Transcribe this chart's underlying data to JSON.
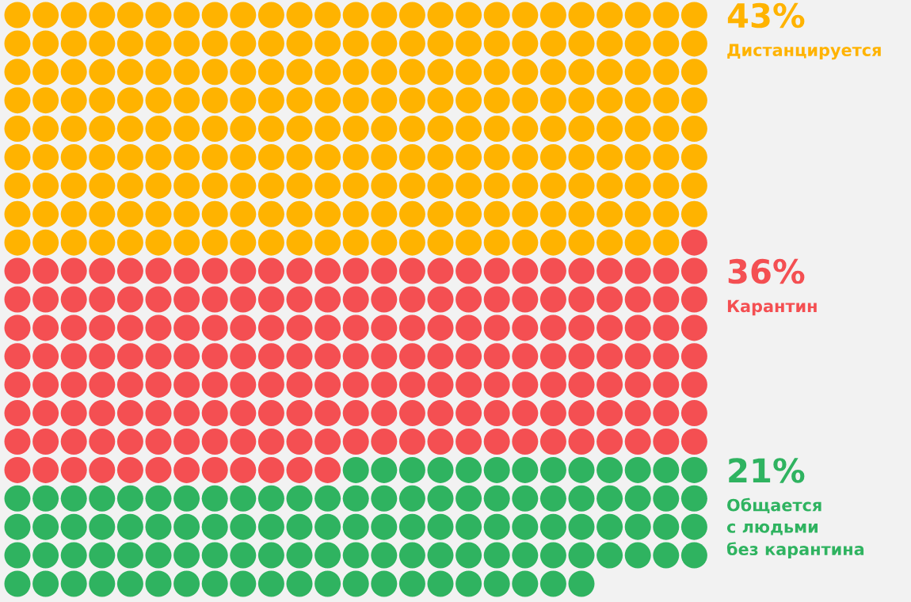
{
  "chart_data": {
    "type": "other",
    "categories": [
      "Дистанцируется",
      "Карантин",
      "Общается\nс людьми\nбез карантина"
    ],
    "values": [
      43,
      36,
      21
    ],
    "value_labels": [
      "43%",
      "36%",
      "21%"
    ],
    "colors": [
      "#ffb300",
      "#f44f52",
      "#2fb360"
    ]
  }
}
